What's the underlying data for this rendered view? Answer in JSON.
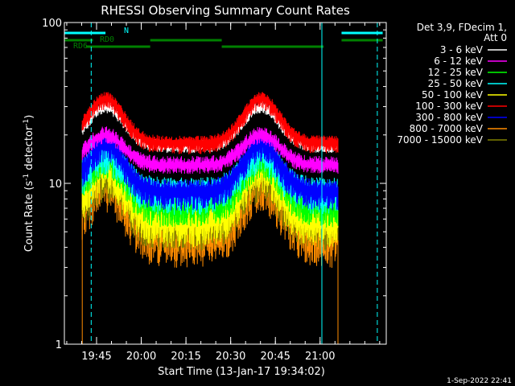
{
  "chart_data": {
    "type": "line",
    "title": "RHESSI Observing Summary Count Rates",
    "xlabel": "Start Time (13-Jan-17 19:34:02)",
    "ylabel_main": "Count Rate (s",
    "ylabel_sup1": "-1",
    "ylabel_mid": " detector",
    "ylabel_sup2": "-1",
    "ylabel_end": ")",
    "yscale": "log",
    "ylim": [
      1,
      100
    ],
    "xlim_minutes": [
      19.57,
      21.37
    ],
    "y_ticks": [
      {
        "v": 1,
        "label": "1"
      },
      {
        "v": 10,
        "label": "10"
      },
      {
        "v": 100,
        "label": "100"
      }
    ],
    "x_ticks": [
      {
        "t": 19.75,
        "label": "19:45"
      },
      {
        "t": 20.0,
        "label": "20:00"
      },
      {
        "t": 20.25,
        "label": "20:15"
      },
      {
        "t": 20.5,
        "label": "20:30"
      },
      {
        "t": 20.75,
        "label": "20:45"
      },
      {
        "t": 21.0,
        "label": "21:00"
      }
    ],
    "legend_title": [
      "Det 3,9, FDecim 1,",
      "Att 0"
    ],
    "series": [
      {
        "name": "3 - 6 keV",
        "color": "#ffffff",
        "peak": 30,
        "trough": 17,
        "start_val": 24,
        "end_val": 17,
        "noise": 0.06
      },
      {
        "name": "6 - 12 keV",
        "color": "#ff00ff",
        "peak": 20,
        "trough": 13,
        "start_val": 17,
        "end_val": 13,
        "noise": 0.08
      },
      {
        "name": "12 - 25 keV",
        "color": "#00ff00",
        "peak": 15,
        "trough": 7.5,
        "start_val": 13,
        "end_val": 7.5,
        "noise": 0.12
      },
      {
        "name": "25 - 50 keV",
        "color": "#00ffff",
        "peak": 16,
        "trough": 9,
        "start_val": 14,
        "end_val": 9,
        "noise": 0.12
      },
      {
        "name": "50 - 100 keV",
        "color": "#ffff00",
        "peak": 13,
        "trough": 6,
        "start_val": 12,
        "end_val": 6,
        "noise": 0.14
      },
      {
        "name": "100 - 300 keV",
        "color": "#ff0000",
        "peak": 34,
        "trough": 18,
        "start_val": 28,
        "end_val": 18,
        "noise": 0.06
      },
      {
        "name": "300 - 800 keV",
        "color": "#0000ff",
        "peak": 18,
        "trough": 9,
        "start_val": 15,
        "end_val": 9,
        "noise": 0.1
      },
      {
        "name": "800 - 7000 keV",
        "color": "#ff8c00",
        "peak": 11,
        "trough": 5,
        "start_val": 9,
        "end_val": 5,
        "noise": 0.18
      },
      {
        "name": "7000 - 15000 keV",
        "color": "#808000",
        "peak": 12,
        "trough": 6,
        "start_val": 10,
        "end_val": 6,
        "noise": 0.16
      }
    ],
    "data_range_minutes": [
      19.67,
      21.1
    ],
    "peak_times": [
      19.8,
      20.67
    ],
    "trough_time": 20.27,
    "flags": [
      {
        "label": "N",
        "color": "#00ffff",
        "segments": [
          [
            19.57,
            19.8
          ],
          [
            21.12,
            21.35
          ]
        ]
      },
      {
        "label": "RD0",
        "color": "#008000",
        "segments": [
          [
            19.57,
            19.73
          ],
          [
            20.05,
            20.45
          ],
          [
            21.12,
            21.35
          ]
        ]
      },
      {
        "label": "RD6",
        "color": "#008000",
        "segments": [
          [
            19.69,
            20.05
          ],
          [
            20.45,
            21.02
          ]
        ]
      }
    ],
    "vlines": [
      {
        "t": 19.57,
        "color": "#00ffff",
        "style": "solid"
      },
      {
        "t": 19.72,
        "color": "#00ffff",
        "style": "dashed"
      },
      {
        "t": 21.01,
        "color": "#00ffff",
        "style": "solid"
      },
      {
        "t": 21.32,
        "color": "#00ffff",
        "style": "dashed"
      }
    ]
  },
  "footer_date": "1-Sep-2022 22:41"
}
